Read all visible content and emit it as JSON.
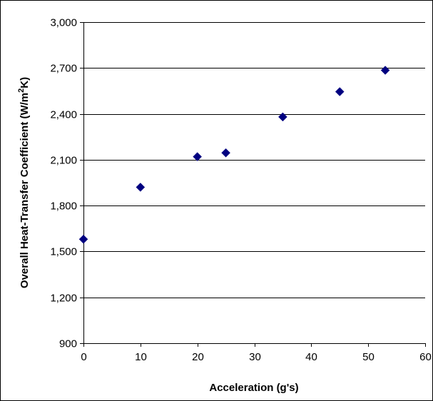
{
  "chart_data": {
    "type": "scatter",
    "xlabel": "Acceleration (g's)",
    "ylabel": {
      "main": "Overall Heat-Transfer Coefficient (W/m",
      "superscript": "2",
      "end": "K)"
    },
    "xlim": [
      0,
      60
    ],
    "ylim": [
      900,
      3000
    ],
    "x_ticks": [
      "0",
      "10",
      "20",
      "30",
      "40",
      "50",
      "60"
    ],
    "y_ticks": [
      "900",
      "1,200",
      "1,500",
      "1,800",
      "2,100",
      "2,400",
      "2,700",
      "3,000"
    ],
    "x_tick_values": [
      0,
      10,
      20,
      30,
      40,
      50,
      60
    ],
    "y_tick_values": [
      900,
      1200,
      1500,
      1800,
      2100,
      2400,
      2700,
      3000
    ],
    "grid": "horizontal",
    "legend": "none",
    "marker": "diamond",
    "marker_color": "#000080",
    "series": [
      {
        "x": [
          0,
          10,
          20,
          25,
          35,
          45,
          53
        ],
        "y": [
          1580,
          1920,
          2120,
          2145,
          2380,
          2545,
          2685
        ]
      }
    ]
  }
}
